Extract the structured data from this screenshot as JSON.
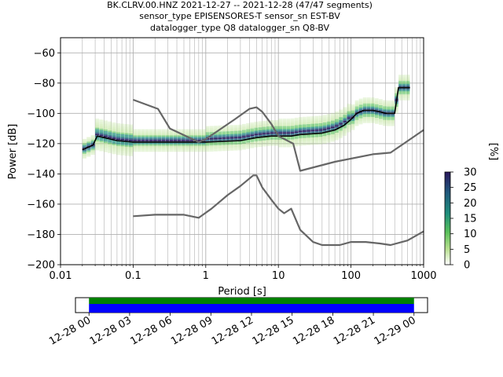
{
  "chart_data": [
    {
      "type": "line",
      "title_lines": [
        "BK.CLRV.00.HNZ   2021-12-27 -- 2021-12-28  (47/47 segments)",
        "sensor_type EPISENSORES-T sensor_sn EST-BV",
        "datalogger_type Q8 datalogger_sn Q8-BV"
      ],
      "xlabel": "Period [s]",
      "ylabel": "Power [dB]",
      "xscale": "log",
      "xlim": [
        0.01,
        1000
      ],
      "ylim": [
        -200,
        -50
      ],
      "xticks": [
        {
          "value": 0.01,
          "label": "0.01"
        },
        {
          "value": 0.1,
          "label": "0.1"
        },
        {
          "value": 1,
          "label": "1"
        },
        {
          "value": 10,
          "label": "10"
        },
        {
          "value": 100,
          "label": "100"
        },
        {
          "value": 1000,
          "label": "1000"
        }
      ],
      "yticks": [
        {
          "value": -60,
          "label": "−60"
        },
        {
          "value": -80,
          "label": "−80"
        },
        {
          "value": -100,
          "label": "−100"
        },
        {
          "value": -120,
          "label": "−120"
        },
        {
          "value": -140,
          "label": "−140"
        },
        {
          "value": -160,
          "label": "−160"
        },
        {
          "value": -180,
          "label": "−180"
        },
        {
          "value": -200,
          "label": "−200"
        }
      ],
      "grid": true,
      "colorbar": {
        "label": "[%]",
        "range": [
          0,
          30
        ],
        "ticks": [
          {
            "value": 0,
            "label": "0"
          },
          {
            "value": 5,
            "label": "5"
          },
          {
            "value": 10,
            "label": "10"
          },
          {
            "value": 15,
            "label": "15"
          },
          {
            "value": 20,
            "label": "20"
          },
          {
            "value": 25,
            "label": "25"
          },
          {
            "value": 30,
            "label": "30"
          }
        ]
      },
      "series": [
        {
          "role": "mode",
          "color": "#000000",
          "points": [
            [
              0.02,
              -124
            ],
            [
              0.025,
              -122
            ],
            [
              0.028,
              -121
            ],
            [
              0.032,
              -115
            ],
            [
              0.04,
              -116
            ],
            [
              0.06,
              -118
            ],
            [
              0.1,
              -119
            ],
            [
              0.3,
              -119
            ],
            [
              1,
              -119
            ],
            [
              3,
              -118
            ],
            [
              5,
              -116
            ],
            [
              8,
              -115
            ],
            [
              10,
              -115
            ],
            [
              15,
              -115
            ],
            [
              20,
              -114
            ],
            [
              40,
              -113
            ],
            [
              60,
              -111
            ],
            [
              80,
              -108
            ],
            [
              100,
              -104
            ],
            [
              120,
              -100
            ],
            [
              150,
              -98
            ],
            [
              200,
              -98
            ],
            [
              250,
              -99
            ],
            [
              300,
              -100
            ],
            [
              400,
              -100
            ],
            [
              450,
              -83
            ],
            [
              500,
              -83
            ],
            [
              650,
              -83
            ]
          ]
        },
        {
          "role": "noise-model-upper",
          "color": "#666666",
          "points": [
            [
              0.1,
              -91
            ],
            [
              0.22,
              -97
            ],
            [
              0.32,
              -110
            ],
            [
              0.8,
              -119
            ],
            [
              1,
              -117
            ],
            [
              2.5,
              -104
            ],
            [
              4,
              -97
            ],
            [
              5,
              -96
            ],
            [
              6,
              -99
            ],
            [
              8,
              -107
            ],
            [
              10,
              -115
            ],
            [
              16,
              -120
            ],
            [
              20,
              -138
            ],
            [
              60,
              -132
            ],
            [
              200,
              -127
            ],
            [
              350,
              -126
            ],
            [
              1000,
              -111
            ]
          ]
        },
        {
          "role": "noise-model-lower",
          "color": "#666666",
          "points": [
            [
              0.1,
              -168
            ],
            [
              0.2,
              -167
            ],
            [
              0.5,
              -167
            ],
            [
              0.8,
              -169
            ],
            [
              1.2,
              -163
            ],
            [
              2,
              -154
            ],
            [
              3,
              -148
            ],
            [
              4.5,
              -141
            ],
            [
              5,
              -141
            ],
            [
              6,
              -149
            ],
            [
              8,
              -157
            ],
            [
              10,
              -163
            ],
            [
              12,
              -166
            ],
            [
              15,
              -163
            ],
            [
              20,
              -177
            ],
            [
              30,
              -185
            ],
            [
              40,
              -187
            ],
            [
              70,
              -187
            ],
            [
              100,
              -185
            ],
            [
              160,
              -185
            ],
            [
              250,
              -186
            ],
            [
              350,
              -187
            ],
            [
              600,
              -184
            ],
            [
              1000,
              -178
            ]
          ]
        }
      ],
      "density": {
        "colormap": [
          "#ffffff",
          "#b8e08f",
          "#5ac15a",
          "#1f8f7c",
          "#21597d",
          "#2a175c"
        ],
        "bands": [
          {
            "x": [
              0.02,
              0.03
            ],
            "center_offset": 0,
            "spread": 6
          },
          {
            "x": [
              0.03,
              0.1
            ],
            "center_offset": 1,
            "spread": 10
          },
          {
            "x": [
              0.1,
              1
            ],
            "center_offset": 1,
            "spread": 7
          },
          {
            "x": [
              1,
              10
            ],
            "center_offset": 2,
            "spread": 8
          },
          {
            "x": [
              10,
              100
            ],
            "center_offset": 2,
            "spread": 9
          },
          {
            "x": [
              100,
              400
            ],
            "center_offset": 0,
            "spread": 8
          },
          {
            "x": [
              400,
              650
            ],
            "center_offset": 0,
            "spread": 8
          }
        ]
      }
    },
    {
      "type": "timeline",
      "ticks": [
        "12-28 00",
        "12-28 03",
        "12-28 06",
        "12-28 09",
        "12-28 12",
        "12-28 15",
        "12-28 18",
        "12-28 21",
        "12-29 00"
      ],
      "range_hours": [
        -1,
        25
      ],
      "data_coverage": {
        "from_hour": 0,
        "to_hour": 24,
        "color": "#0000ff"
      },
      "processed_coverage": {
        "from_hour": 0,
        "to_hour": 24,
        "color": "#008000"
      }
    }
  ]
}
